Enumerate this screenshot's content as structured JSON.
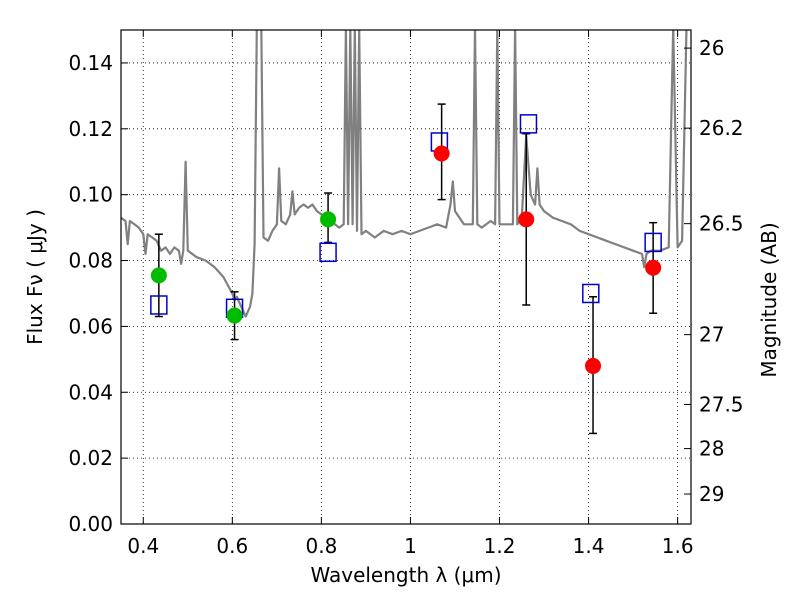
{
  "chart_data": {
    "type": "scatter",
    "xlabel": "Wavelength  λ (μm)",
    "ylabel": "Flux  Fν  ( μJy )",
    "y2label": "Magnitude (AB)",
    "xlim": [
      0.35,
      1.63
    ],
    "ylim": [
      0.0,
      0.15
    ],
    "xticks": [
      0.4,
      0.6,
      0.8,
      1.0,
      1.2,
      1.4,
      1.6
    ],
    "xtick_labels": [
      "0.4",
      "0.6",
      "0.8",
      "1",
      "1.2",
      "1.4",
      "1.6"
    ],
    "yticks": [
      0.0,
      0.02,
      0.04,
      0.06,
      0.08,
      0.1,
      0.12,
      0.14
    ],
    "ytick_labels": [
      "0.00",
      "0.02",
      "0.04",
      "0.06",
      "0.08",
      "0.10",
      "0.12",
      "0.14"
    ],
    "y2ticks": [
      {
        "label": "26",
        "flux": 0.1445
      },
      {
        "label": "26.2",
        "flux": 0.1202
      },
      {
        "label": "26.5",
        "flux": 0.0912
      },
      {
        "label": "27",
        "flux": 0.0575
      },
      {
        "label": "27.5",
        "flux": 0.0363
      },
      {
        "label": "28",
        "flux": 0.0229
      },
      {
        "label": "29",
        "flux": 0.0091
      }
    ],
    "grid": true,
    "colors": {
      "model": "#808080",
      "green": "#00bb00",
      "red": "#ff0000",
      "square": "#0000cc",
      "errorbar": "#000000"
    },
    "model_spectrum": [
      [
        0.35,
        0.093
      ],
      [
        0.36,
        0.092
      ],
      [
        0.365,
        0.085
      ],
      [
        0.37,
        0.092
      ],
      [
        0.38,
        0.091
      ],
      [
        0.39,
        0.09
      ],
      [
        0.4,
        0.088
      ],
      [
        0.405,
        0.082
      ],
      [
        0.41,
        0.088
      ],
      [
        0.42,
        0.087
      ],
      [
        0.43,
        0.086
      ],
      [
        0.44,
        0.083
      ],
      [
        0.45,
        0.084
      ],
      [
        0.46,
        0.082
      ],
      [
        0.47,
        0.084
      ],
      [
        0.48,
        0.083
      ],
      [
        0.485,
        0.079
      ],
      [
        0.49,
        0.083
      ],
      [
        0.495,
        0.11
      ],
      [
        0.5,
        0.083
      ],
      [
        0.52,
        0.081
      ],
      [
        0.54,
        0.08
      ],
      [
        0.56,
        0.078
      ],
      [
        0.58,
        0.075
      ],
      [
        0.6,
        0.07
      ],
      [
        0.605,
        0.068
      ],
      [
        0.61,
        0.069
      ],
      [
        0.62,
        0.066
      ],
      [
        0.63,
        0.063
      ],
      [
        0.64,
        0.066
      ],
      [
        0.645,
        0.07
      ],
      [
        0.65,
        0.085
      ],
      [
        0.655,
        0.151
      ],
      [
        0.665,
        0.151
      ],
      [
        0.67,
        0.087
      ],
      [
        0.68,
        0.086
      ],
      [
        0.69,
        0.089
      ],
      [
        0.7,
        0.091
      ],
      [
        0.705,
        0.108
      ],
      [
        0.71,
        0.092
      ],
      [
        0.72,
        0.091
      ],
      [
        0.73,
        0.094
      ],
      [
        0.735,
        0.101
      ],
      [
        0.74,
        0.094
      ],
      [
        0.75,
        0.096
      ],
      [
        0.76,
        0.097
      ],
      [
        0.77,
        0.096
      ],
      [
        0.78,
        0.097
      ],
      [
        0.79,
        0.095
      ],
      [
        0.8,
        0.094
      ],
      [
        0.81,
        0.092
      ],
      [
        0.82,
        0.093
      ],
      [
        0.83,
        0.091
      ],
      [
        0.84,
        0.09
      ],
      [
        0.85,
        0.091
      ],
      [
        0.855,
        0.151
      ],
      [
        0.86,
        0.091
      ],
      [
        0.865,
        0.151
      ],
      [
        0.87,
        0.091
      ],
      [
        0.875,
        0.151
      ],
      [
        0.88,
        0.089
      ],
      [
        0.885,
        0.151
      ],
      [
        0.89,
        0.088
      ],
      [
        0.9,
        0.089
      ],
      [
        0.92,
        0.087
      ],
      [
        0.94,
        0.089
      ],
      [
        0.96,
        0.088
      ],
      [
        0.98,
        0.089
      ],
      [
        1.0,
        0.088
      ],
      [
        1.02,
        0.089
      ],
      [
        1.04,
        0.09
      ],
      [
        1.06,
        0.091
      ],
      [
        1.08,
        0.09
      ],
      [
        1.09,
        0.097
      ],
      [
        1.095,
        0.104
      ],
      [
        1.1,
        0.095
      ],
      [
        1.12,
        0.091
      ],
      [
        1.14,
        0.091
      ],
      [
        1.145,
        0.151
      ],
      [
        1.15,
        0.091
      ],
      [
        1.16,
        0.09
      ],
      [
        1.18,
        0.092
      ],
      [
        1.19,
        0.091
      ],
      [
        1.195,
        0.151
      ],
      [
        1.2,
        0.091
      ],
      [
        1.22,
        0.091
      ],
      [
        1.23,
        0.091
      ],
      [
        1.235,
        0.151
      ],
      [
        1.24,
        0.091
      ],
      [
        1.25,
        0.093
      ],
      [
        1.26,
        0.118
      ],
      [
        1.27,
        0.1
      ],
      [
        1.28,
        0.097
      ],
      [
        1.285,
        0.108
      ],
      [
        1.29,
        0.097
      ],
      [
        1.3,
        0.095
      ],
      [
        1.32,
        0.093
      ],
      [
        1.34,
        0.092
      ],
      [
        1.36,
        0.091
      ],
      [
        1.38,
        0.089
      ],
      [
        1.4,
        0.088
      ],
      [
        1.42,
        0.087
      ],
      [
        1.44,
        0.086
      ],
      [
        1.46,
        0.085
      ],
      [
        1.48,
        0.084
      ],
      [
        1.5,
        0.083
      ],
      [
        1.52,
        0.082
      ],
      [
        1.525,
        0.078
      ],
      [
        1.53,
        0.082
      ],
      [
        1.54,
        0.083
      ],
      [
        1.56,
        0.083
      ],
      [
        1.58,
        0.084
      ],
      [
        1.59,
        0.151
      ],
      [
        1.6,
        0.084
      ],
      [
        1.61,
        0.086
      ],
      [
        1.62,
        0.151
      ],
      [
        1.63,
        0.151
      ]
    ],
    "green_points": [
      {
        "x": 0.435,
        "y": 0.0755
      },
      {
        "x": 0.605,
        "y": 0.0633
      },
      {
        "x": 0.815,
        "y": 0.0925
      }
    ],
    "red_points": [
      {
        "x": 1.07,
        "y": 0.1125
      },
      {
        "x": 1.26,
        "y": 0.0925
      },
      {
        "x": 1.41,
        "y": 0.048
      },
      {
        "x": 1.545,
        "y": 0.0778
      }
    ],
    "squares": [
      {
        "x": 0.435,
        "y": 0.0665
      },
      {
        "x": 0.605,
        "y": 0.0655
      },
      {
        "x": 0.815,
        "y": 0.0825
      },
      {
        "x": 1.065,
        "y": 0.116
      },
      {
        "x": 1.265,
        "y": 0.1215
      },
      {
        "x": 1.405,
        "y": 0.07
      },
      {
        "x": 1.545,
        "y": 0.0855
      }
    ],
    "errorbars": [
      {
        "x": 0.435,
        "low": 0.063,
        "high": 0.088
      },
      {
        "x": 0.605,
        "low": 0.056,
        "high": 0.0705
      },
      {
        "x": 0.815,
        "low": 0.0855,
        "high": 0.1005
      },
      {
        "x": 1.07,
        "low": 0.0985,
        "high": 0.1275
      },
      {
        "x": 1.26,
        "low": 0.0665,
        "high": 0.1185
      },
      {
        "x": 1.41,
        "low": 0.0275,
        "high": 0.069
      },
      {
        "x": 1.545,
        "low": 0.064,
        "high": 0.0915
      }
    ]
  }
}
